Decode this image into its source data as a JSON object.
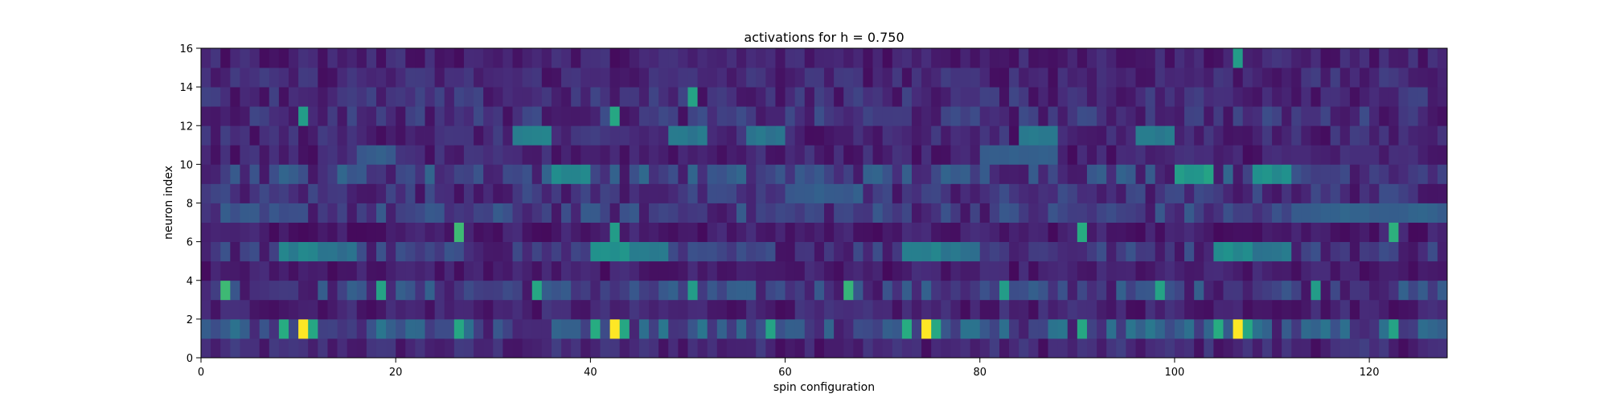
{
  "chart_data": {
    "type": "heatmap",
    "title": "activations for h = 0.750",
    "xlabel": "spin configuration",
    "ylabel": "neuron index",
    "xlim": [
      0,
      128
    ],
    "ylim": [
      0,
      16
    ],
    "x_ticks": [
      "0",
      "20",
      "40",
      "60",
      "80",
      "100",
      "120"
    ],
    "y_ticks": [
      "0",
      "2",
      "4",
      "6",
      "8",
      "10",
      "12",
      "14",
      "16"
    ],
    "n_columns": 128,
    "n_rows": 16,
    "colormap": "viridis",
    "value_range": [
      0,
      1
    ],
    "row_profile": [
      0.14,
      0.3,
      0.12,
      0.24,
      0.1,
      0.2,
      0.1,
      0.22,
      0.18,
      0.26,
      0.12,
      0.14,
      0.18,
      0.16,
      0.14,
      0.12
    ],
    "hot_cells": [
      {
        "x": 10,
        "y": 1,
        "v": 1.0
      },
      {
        "x": 42,
        "y": 1,
        "v": 1.0
      },
      {
        "x": 74,
        "y": 1,
        "v": 1.0
      },
      {
        "x": 106,
        "y": 1,
        "v": 1.0
      },
      {
        "x": 8,
        "y": 1,
        "v": 0.62
      },
      {
        "x": 11,
        "y": 1,
        "v": 0.6
      },
      {
        "x": 40,
        "y": 1,
        "v": 0.62
      },
      {
        "x": 43,
        "y": 1,
        "v": 0.6
      },
      {
        "x": 72,
        "y": 1,
        "v": 0.62
      },
      {
        "x": 75,
        "y": 1,
        "v": 0.6
      },
      {
        "x": 104,
        "y": 1,
        "v": 0.62
      },
      {
        "x": 107,
        "y": 1,
        "v": 0.6
      },
      {
        "x": 26,
        "y": 1,
        "v": 0.6
      },
      {
        "x": 58,
        "y": 1,
        "v": 0.58
      },
      {
        "x": 90,
        "y": 1,
        "v": 0.6
      },
      {
        "x": 122,
        "y": 1,
        "v": 0.58
      },
      {
        "x": 2,
        "y": 3,
        "v": 0.68
      },
      {
        "x": 18,
        "y": 3,
        "v": 0.58
      },
      {
        "x": 34,
        "y": 3,
        "v": 0.6
      },
      {
        "x": 50,
        "y": 3,
        "v": 0.55
      },
      {
        "x": 66,
        "y": 3,
        "v": 0.66
      },
      {
        "x": 82,
        "y": 3,
        "v": 0.55
      },
      {
        "x": 98,
        "y": 3,
        "v": 0.58
      },
      {
        "x": 114,
        "y": 3,
        "v": 0.55
      },
      {
        "x": 26,
        "y": 6,
        "v": 0.68
      },
      {
        "x": 42,
        "y": 6,
        "v": 0.55
      },
      {
        "x": 90,
        "y": 6,
        "v": 0.62
      },
      {
        "x": 122,
        "y": 6,
        "v": 0.64
      },
      {
        "x": 10,
        "y": 12,
        "v": 0.55
      },
      {
        "x": 42,
        "y": 12,
        "v": 0.6
      },
      {
        "x": 50,
        "y": 13,
        "v": 0.58
      },
      {
        "x": 106,
        "y": 15,
        "v": 0.55
      }
    ],
    "band_cells": [
      {
        "x0": 8,
        "x1": 12,
        "y": 5,
        "v": 0.45
      },
      {
        "x0": 12,
        "x1": 16,
        "y": 5,
        "v": 0.38
      },
      {
        "x0": 40,
        "x1": 44,
        "y": 5,
        "v": 0.5
      },
      {
        "x0": 44,
        "x1": 48,
        "y": 5,
        "v": 0.42
      },
      {
        "x0": 72,
        "x1": 76,
        "y": 5,
        "v": 0.46
      },
      {
        "x0": 76,
        "x1": 80,
        "y": 5,
        "v": 0.4
      },
      {
        "x0": 104,
        "x1": 108,
        "y": 5,
        "v": 0.5
      },
      {
        "x0": 108,
        "x1": 112,
        "y": 5,
        "v": 0.4
      },
      {
        "x0": 36,
        "x1": 40,
        "y": 9,
        "v": 0.5
      },
      {
        "x0": 100,
        "x1": 104,
        "y": 9,
        "v": 0.56
      },
      {
        "x0": 108,
        "x1": 112,
        "y": 9,
        "v": 0.52
      },
      {
        "x0": 32,
        "x1": 36,
        "y": 11,
        "v": 0.44
      },
      {
        "x0": 48,
        "x1": 52,
        "y": 11,
        "v": 0.42
      },
      {
        "x0": 56,
        "x1": 60,
        "y": 11,
        "v": 0.4
      },
      {
        "x0": 84,
        "x1": 88,
        "y": 11,
        "v": 0.4
      },
      {
        "x0": 96,
        "x1": 100,
        "y": 11,
        "v": 0.42
      },
      {
        "x0": 16,
        "x1": 20,
        "y": 10,
        "v": 0.3
      },
      {
        "x0": 80,
        "x1": 88,
        "y": 10,
        "v": 0.3
      },
      {
        "x0": 112,
        "x1": 128,
        "y": 7,
        "v": 0.32
      },
      {
        "x0": 60,
        "x1": 68,
        "y": 8,
        "v": 0.3
      }
    ]
  }
}
